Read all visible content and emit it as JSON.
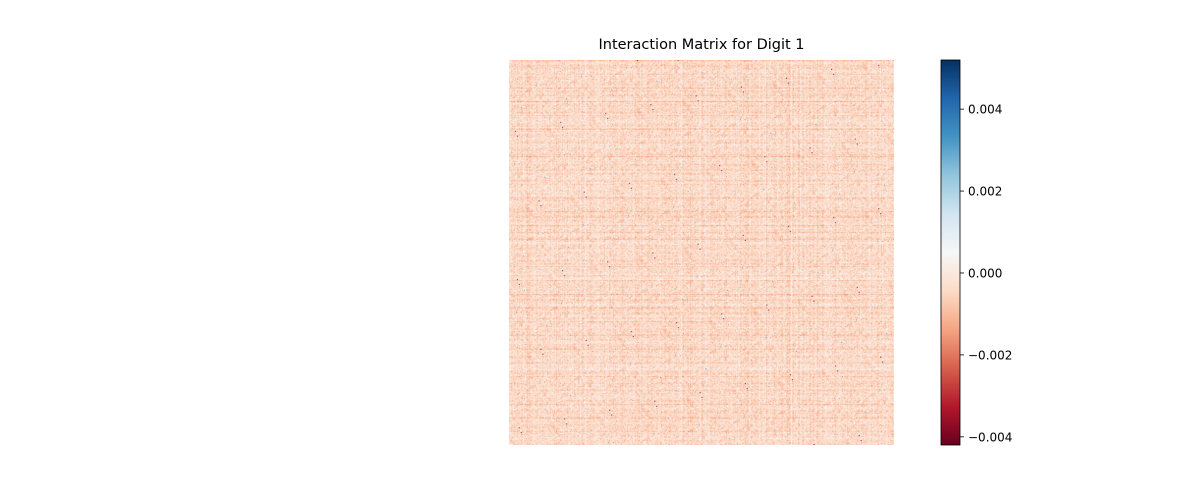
{
  "chart_data": {
    "type": "heatmap",
    "title": "Interaction Matrix for Digit 1",
    "xlabel": "",
    "ylabel": "",
    "axes_visible": false,
    "matrix_size": [
      784,
      784
    ],
    "colormap": "RdBu",
    "value_range": [
      -0.0042,
      0.0052
    ],
    "typical_value_mean": -0.0004,
    "typical_value_spread": 0.0006,
    "colorbar": {
      "placement": "right",
      "ticks": [
        0.004,
        0.002,
        0.0,
        -0.002,
        -0.004
      ],
      "tick_labels": [
        "0.004",
        "0.002",
        "0.000",
        "−0.002",
        "−0.004"
      ]
    }
  }
}
